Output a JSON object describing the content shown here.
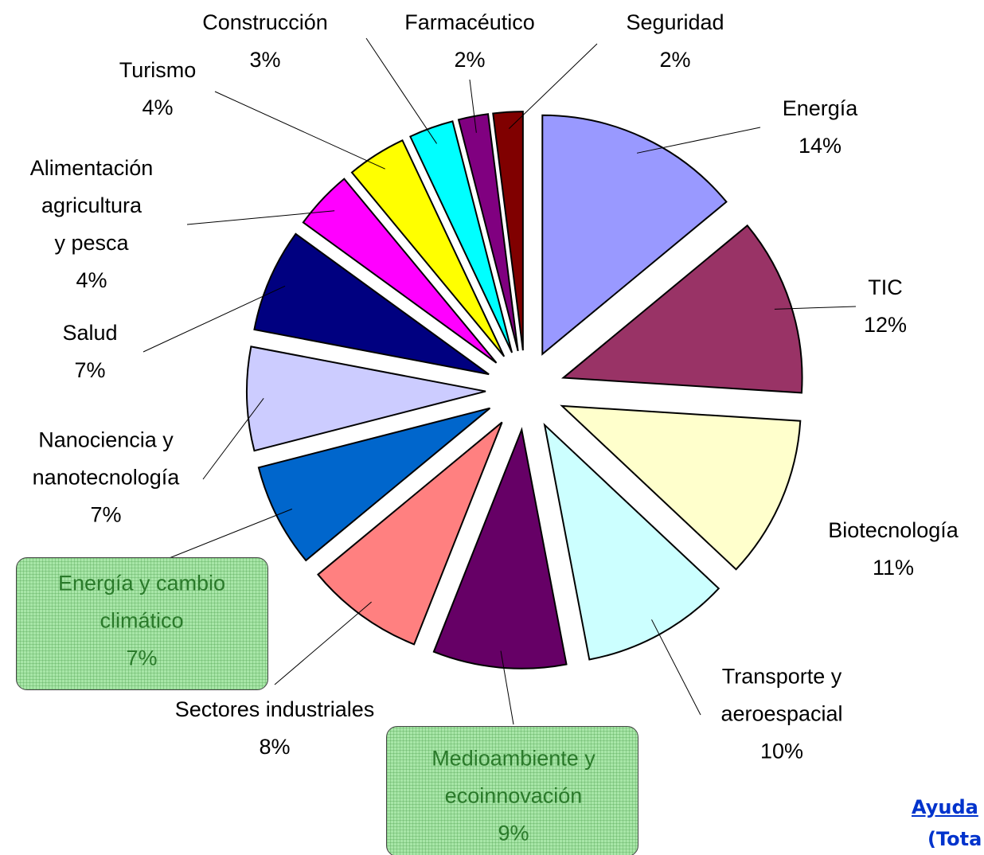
{
  "chart_data": {
    "type": "pie",
    "categories": [
      "Energía",
      "TIC",
      "Biotecnología",
      "Transporte y\naeroespacial",
      "Medioambiente y\necoinnovación",
      "Sectores industriales",
      "Energía y cambio\nclimático",
      "Nanociencia y\nnanotecnología",
      "Salud",
      "Alimentación\nagricultura\ny pesca",
      "Turismo",
      "Construcción",
      "Farmacéutico",
      "Seguridad"
    ],
    "values": [
      14,
      12,
      11,
      10,
      9,
      8,
      7,
      7,
      7,
      4,
      4,
      3,
      2,
      2
    ],
    "value_labels": [
      "14%",
      "12%",
      "11%",
      "10%",
      "9%",
      "8%",
      "7%",
      "7%",
      "7%",
      "4%",
      "4%",
      "3%",
      "2%",
      "2%"
    ],
    "colors": [
      "#9999ff",
      "#993366",
      "#ffffcc",
      "#ccffff",
      "#660066",
      "#ff8080",
      "#0066cc",
      "#ccccff",
      "#000080",
      "#ff00ff",
      "#ffff00",
      "#00ffff",
      "#800080",
      "#800000"
    ],
    "annotations": [
      "Ayuda",
      "(Tota"
    ]
  }
}
